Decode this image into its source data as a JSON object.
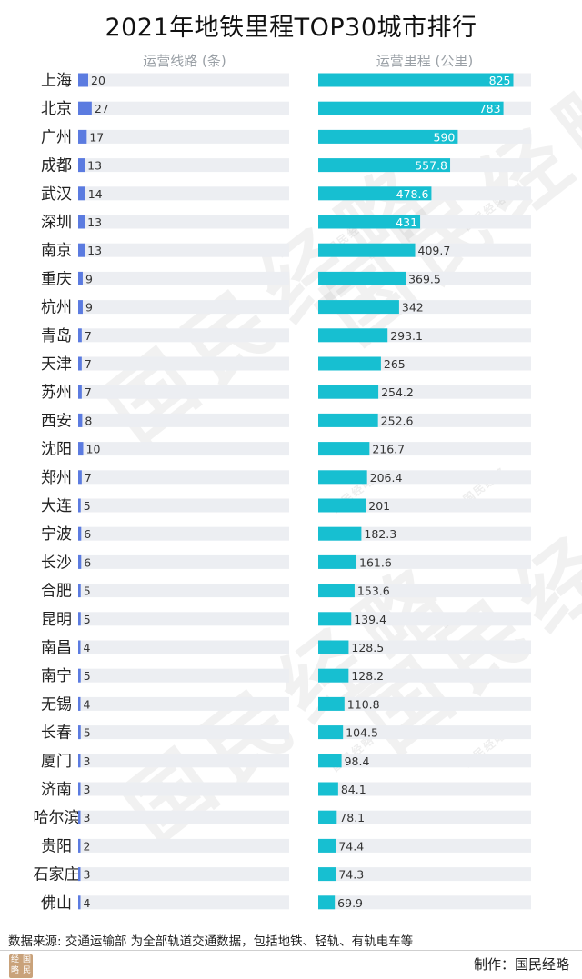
{
  "title": "2021年地铁里程TOP30城市排行",
  "footer": {
    "source": "数据来源: 交通运输部  为全部轨道交通数据，包括地铁、轻轨、有轨电车等",
    "maker": "制作：国民经略",
    "logo_chars": [
      "国",
      "经",
      "民",
      "略"
    ]
  },
  "watermark_text": "国民经略",
  "colors": {
    "lines_bar": "#5b7be0",
    "mileage_bar": "#17bfd1",
    "track": "#eceef2",
    "value_on_bar": "#ffffff",
    "value_off_bar": "#333333"
  },
  "chart_data": [
    {
      "type": "bar",
      "orientation": "horizontal",
      "title": "运营线路 (条)",
      "categories": [
        "上海",
        "北京",
        "广州",
        "成都",
        "武汉",
        "深圳",
        "南京",
        "重庆",
        "杭州",
        "青岛",
        "天津",
        "苏州",
        "西安",
        "沈阳",
        "郑州",
        "大连",
        "宁波",
        "长沙",
        "合肥",
        "昆明",
        "南昌",
        "南宁",
        "无锡",
        "长春",
        "厦门",
        "济南",
        "哈尔滨",
        "贵阳",
        "石家庄",
        "佛山"
      ],
      "values": [
        20,
        27,
        17,
        13,
        14,
        13,
        13,
        9,
        9,
        7,
        7,
        7,
        8,
        10,
        7,
        5,
        6,
        6,
        5,
        5,
        4,
        5,
        4,
        5,
        3,
        3,
        3,
        2,
        3,
        4
      ]
    },
    {
      "type": "bar",
      "orientation": "horizontal",
      "title": "运营里程 (公里)",
      "categories": [
        "上海",
        "北京",
        "广州",
        "成都",
        "武汉",
        "深圳",
        "南京",
        "重庆",
        "杭州",
        "青岛",
        "天津",
        "苏州",
        "西安",
        "沈阳",
        "郑州",
        "大连",
        "宁波",
        "长沙",
        "合肥",
        "昆明",
        "南昌",
        "南宁",
        "无锡",
        "长春",
        "厦门",
        "济南",
        "哈尔滨",
        "贵阳",
        "石家庄",
        "佛山"
      ],
      "values": [
        "825",
        "783",
        "590",
        "557.8",
        "478.6",
        "431",
        "409.7",
        "369.5",
        "342",
        "293.1",
        "265",
        "254.2",
        "252.6",
        "216.7",
        "206.4",
        "201",
        "182.3",
        "161.6",
        "153.6",
        "139.4",
        "128.5",
        "128.2",
        "110.8",
        "104.5",
        "98.4",
        "84.1",
        "78.1",
        "74.4",
        "74.3",
        "69.9"
      ],
      "xlim": [
        0,
        900
      ]
    }
  ]
}
